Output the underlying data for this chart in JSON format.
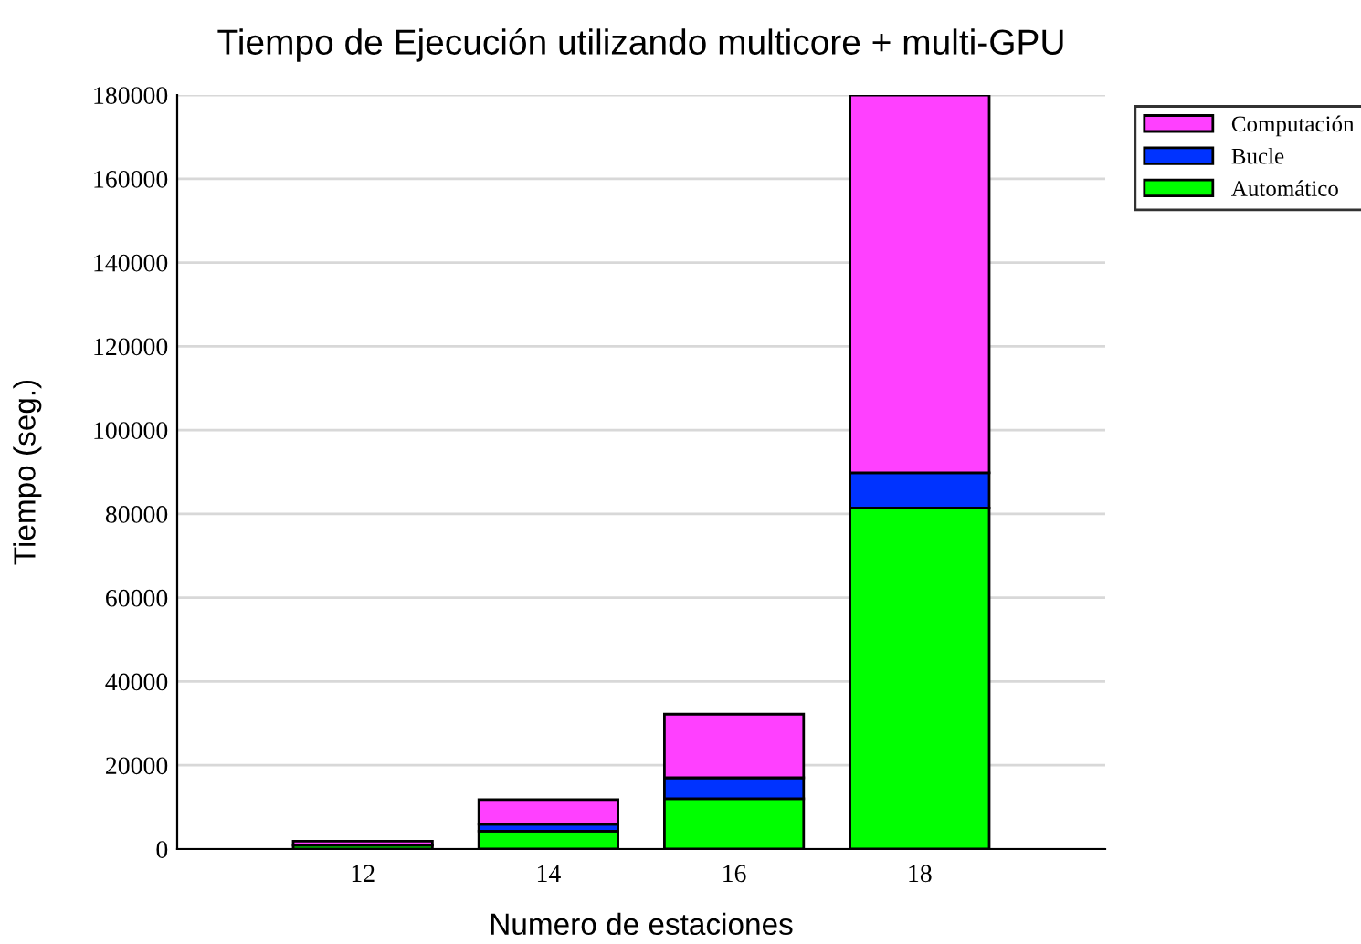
{
  "chart_data": {
    "type": "bar",
    "stacked": true,
    "title": "Tiempo de Ejecución utilizando multicore + multi-GPU",
    "xlabel": "Numero de estaciones",
    "ylabel": "Tiempo (seg.)",
    "categories": [
      "12",
      "14",
      "16",
      "18"
    ],
    "series": [
      {
        "name": "Automático",
        "color": "#00ff00",
        "values": [
          900,
          4300,
          12000,
          81400
        ]
      },
      {
        "name": "Bucle",
        "color": "#0033ff",
        "values": [
          null,
          1600,
          5000,
          8400
        ]
      },
      {
        "name": "Computación",
        "color": "#ff40ff",
        "values": [
          1000,
          5900,
          15200,
          90200
        ]
      }
    ],
    "ylim": [
      0,
      180000
    ],
    "yticks": [
      0,
      20000,
      40000,
      60000,
      80000,
      100000,
      120000,
      140000,
      160000,
      180000
    ],
    "grid": "y",
    "legend": "top right"
  }
}
